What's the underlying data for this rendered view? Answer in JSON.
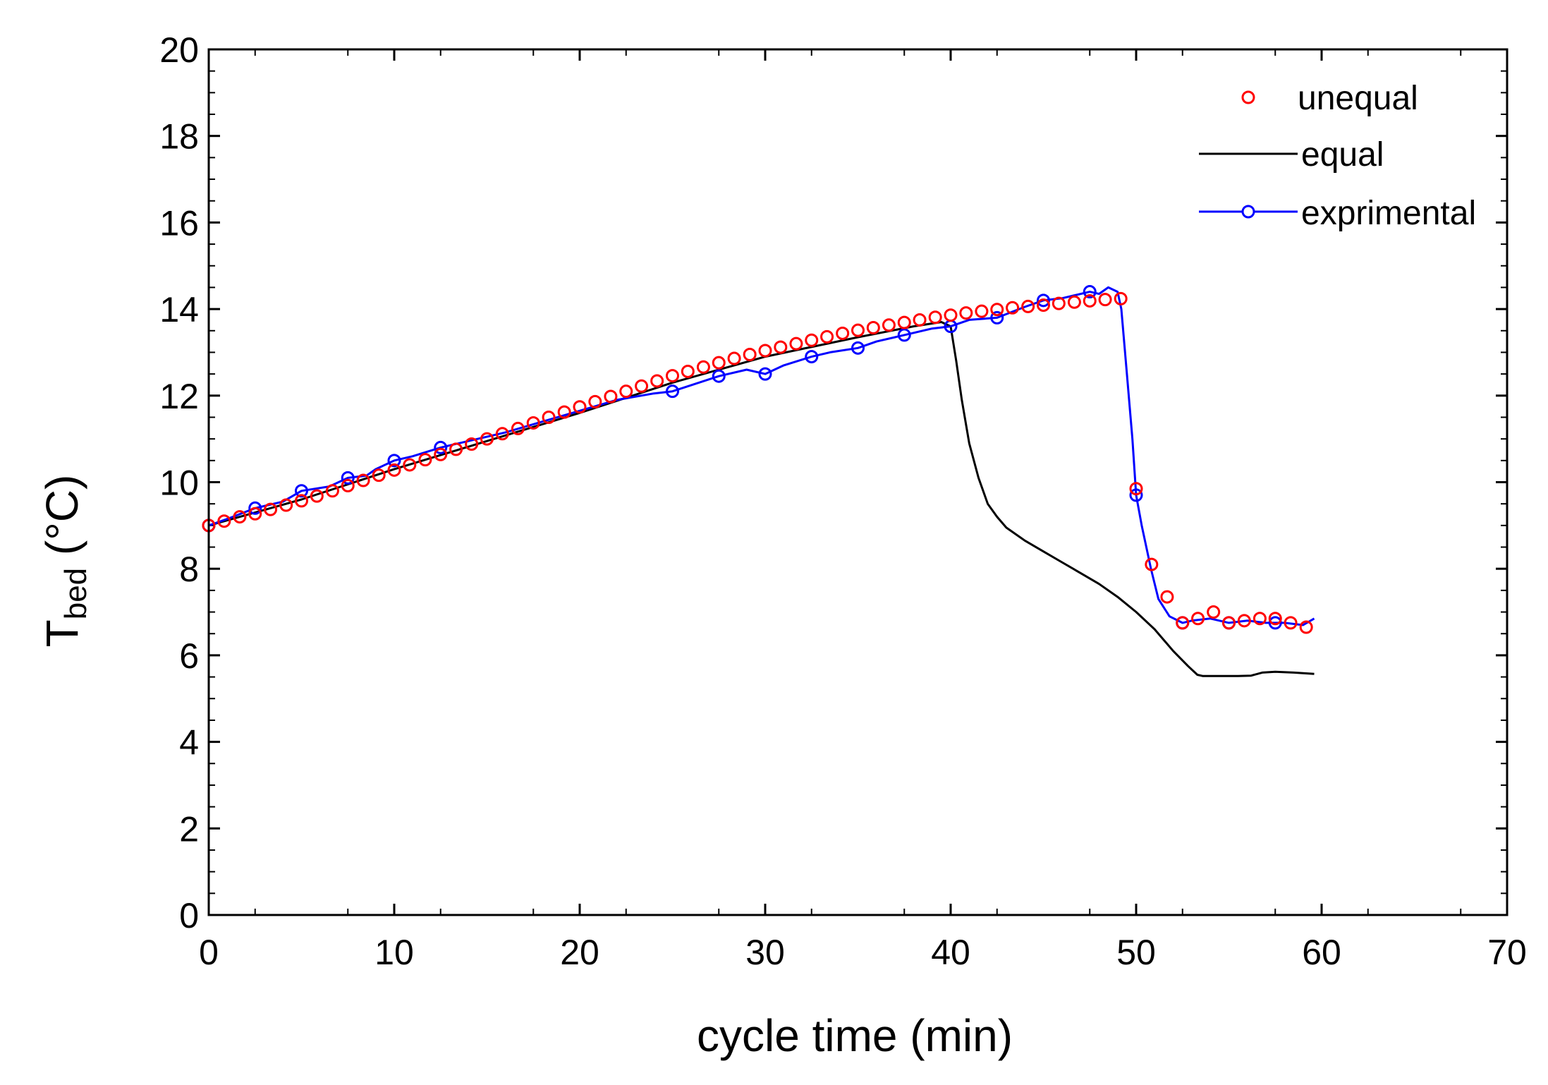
{
  "chart_data": {
    "type": "line",
    "xlabel": "cycle time (min)",
    "ylabel_main": "T",
    "ylabel_sub": "bed",
    "ylabel_unit": " (°C)",
    "xlim": [
      0,
      70
    ],
    "ylim": [
      0,
      20
    ],
    "x_major_ticks": [
      0,
      10,
      20,
      30,
      40,
      50,
      60,
      70
    ],
    "y_major_ticks": [
      0,
      2,
      4,
      6,
      8,
      10,
      12,
      14,
      16,
      18,
      20
    ],
    "x_tick_labels": [
      "0",
      "10",
      "20",
      "30",
      "40",
      "50",
      "60",
      "70"
    ],
    "y_tick_labels": [
      "0",
      "2",
      "4",
      "6",
      "8",
      "10",
      "12",
      "14",
      "16",
      "18",
      "20"
    ],
    "legend_position": "top-right",
    "series": [
      {
        "name": "unequal",
        "style": "markers",
        "color": "#ff0000",
        "x": [
          0,
          0.83,
          1.67,
          2.5,
          3.33,
          4.17,
          5,
          5.83,
          6.67,
          7.5,
          8.33,
          9.17,
          10,
          10.83,
          11.67,
          12.5,
          13.33,
          14.17,
          15,
          15.83,
          16.67,
          17.5,
          18.33,
          19.17,
          20,
          20.83,
          21.67,
          22.5,
          23.33,
          24.17,
          25,
          25.83,
          26.67,
          27.5,
          28.33,
          29.17,
          30,
          30.83,
          31.67,
          32.5,
          33.33,
          34.17,
          35,
          35.83,
          36.67,
          37.5,
          38.33,
          39.17,
          40,
          40.83,
          41.67,
          42.5,
          43.33,
          44.17,
          45,
          45.83,
          46.67,
          47.5,
          48.33,
          49.17,
          50,
          50.83,
          51.67,
          52.5,
          53.33,
          54.17,
          55,
          55.83,
          56.67,
          57.5,
          58.33,
          59.17
        ],
        "y": [
          9.0,
          9.1,
          9.2,
          9.27,
          9.37,
          9.47,
          9.57,
          9.68,
          9.8,
          9.92,
          10.04,
          10.16,
          10.28,
          10.4,
          10.52,
          10.64,
          10.76,
          10.88,
          11.0,
          11.12,
          11.24,
          11.37,
          11.5,
          11.62,
          11.74,
          11.86,
          11.98,
          12.1,
          12.22,
          12.34,
          12.46,
          12.56,
          12.66,
          12.76,
          12.86,
          12.95,
          13.04,
          13.12,
          13.2,
          13.28,
          13.36,
          13.44,
          13.51,
          13.57,
          13.63,
          13.69,
          13.75,
          13.81,
          13.86,
          13.91,
          13.95,
          13.99,
          14.03,
          14.06,
          14.09,
          14.13,
          14.16,
          14.19,
          14.22,
          14.24,
          9.85,
          8.1,
          7.35,
          6.75,
          6.85,
          7.0,
          6.75,
          6.8,
          6.85,
          6.85,
          6.75,
          6.65
        ]
      },
      {
        "name": "equal",
        "style": "line",
        "color": "#000000",
        "x": [
          0,
          5,
          10,
          15,
          20,
          25,
          30,
          35,
          38,
          39.5,
          40,
          40.3,
          40.6,
          41,
          41.5,
          42,
          42.5,
          43,
          44,
          45,
          46,
          47,
          48,
          49,
          50,
          51,
          52,
          52.8,
          53.3,
          53.6,
          54.5,
          55.5,
          56.2,
          56.8,
          57.5,
          58.5,
          59.6
        ],
        "y": [
          9.0,
          9.6,
          10.3,
          10.95,
          11.6,
          12.3,
          12.9,
          13.35,
          13.6,
          13.7,
          13.6,
          12.8,
          11.9,
          10.9,
          10.1,
          9.5,
          9.2,
          8.95,
          8.65,
          8.4,
          8.15,
          7.9,
          7.65,
          7.35,
          7.0,
          6.6,
          6.1,
          5.75,
          5.55,
          5.52,
          5.52,
          5.52,
          5.53,
          5.6,
          5.62,
          5.6,
          5.57
        ]
      },
      {
        "name": "exprimental",
        "style": "line+markers",
        "color": "#0000ff",
        "x": [
          0,
          1,
          2.5,
          4,
          5,
          6.5,
          7.5,
          8.5,
          9,
          10,
          11,
          12.5,
          14,
          16,
          18,
          20,
          22,
          24,
          25,
          27.5,
          29,
          30,
          31,
          32.5,
          33.5,
          35,
          36,
          37.5,
          39,
          40,
          41,
          42.5,
          44,
          45,
          46,
          47.5,
          48,
          48.5,
          49,
          49.2,
          49.5,
          49.8,
          50,
          50.3,
          50.8,
          51.2,
          51.8,
          52.5,
          53,
          54,
          55,
          56,
          57,
          58,
          59,
          59.6
        ],
        "y": [
          9.0,
          9.15,
          9.4,
          9.55,
          9.8,
          9.9,
          10.1,
          10.15,
          10.3,
          10.5,
          10.6,
          10.8,
          10.95,
          11.15,
          11.4,
          11.65,
          11.9,
          12.05,
          12.1,
          12.45,
          12.6,
          12.5,
          12.7,
          12.9,
          13.0,
          13.1,
          13.25,
          13.4,
          13.55,
          13.6,
          13.75,
          13.8,
          14.05,
          14.2,
          14.25,
          14.4,
          14.35,
          14.5,
          14.4,
          14.0,
          12.5,
          11.0,
          9.7,
          9.0,
          8.0,
          7.3,
          6.9,
          6.75,
          6.8,
          6.85,
          6.75,
          6.8,
          6.75,
          6.75,
          6.7,
          6.85
        ],
        "marker_x": [
          0,
          2.5,
          5,
          7.5,
          10,
          12.5,
          25,
          27.5,
          30,
          32.5,
          35,
          37.5,
          40,
          42.5,
          45,
          47.5,
          50,
          52.5,
          55,
          57.5
        ],
        "marker_y": [
          9.0,
          9.4,
          9.8,
          10.1,
          10.5,
          10.8,
          12.1,
          12.45,
          12.5,
          12.9,
          13.1,
          13.4,
          13.6,
          13.8,
          14.2,
          14.4,
          9.7,
          6.75,
          6.75,
          6.75
        ]
      }
    ]
  }
}
